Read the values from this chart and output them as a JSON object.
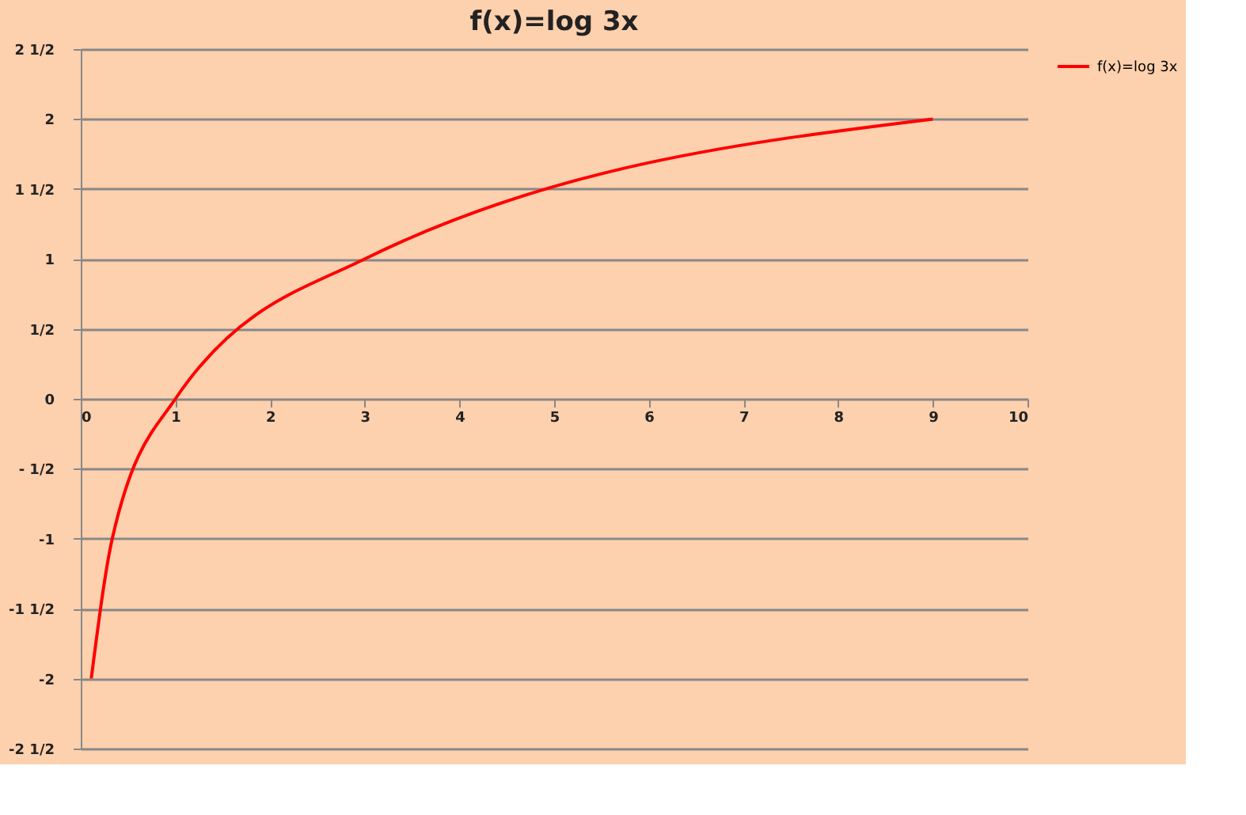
{
  "chart_data": {
    "type": "line",
    "title": "f(x)=log 3x",
    "x": [
      0.111,
      0.333,
      1,
      3,
      9
    ],
    "series": [
      {
        "name": "f(x)=log 3x",
        "color": "#ff0000",
        "values": [
          -2,
          -1,
          0,
          1,
          2
        ]
      }
    ],
    "xlim": [
      0,
      10
    ],
    "xticks": [
      0,
      1,
      2,
      3,
      4,
      5,
      6,
      7,
      8,
      9,
      10
    ],
    "ylim": [
      -2.5,
      2.5
    ],
    "yticks": [
      {
        "value": -2.5,
        "label": "-2 1/2"
      },
      -2,
      {
        "value": -1.5,
        "label": "-1 1/2"
      },
      -1,
      {
        "value": -0.5,
        "label": "- 1/2"
      },
      0,
      {
        "value": 0.5,
        "label": "1/2"
      },
      1,
      {
        "value": 1.5,
        "label": "1 1/2"
      },
      2,
      {
        "value": 2.5,
        "label": "2 1/2"
      }
    ],
    "grid": "y",
    "legend": "right",
    "marker": "none",
    "line_style": "solid"
  }
}
